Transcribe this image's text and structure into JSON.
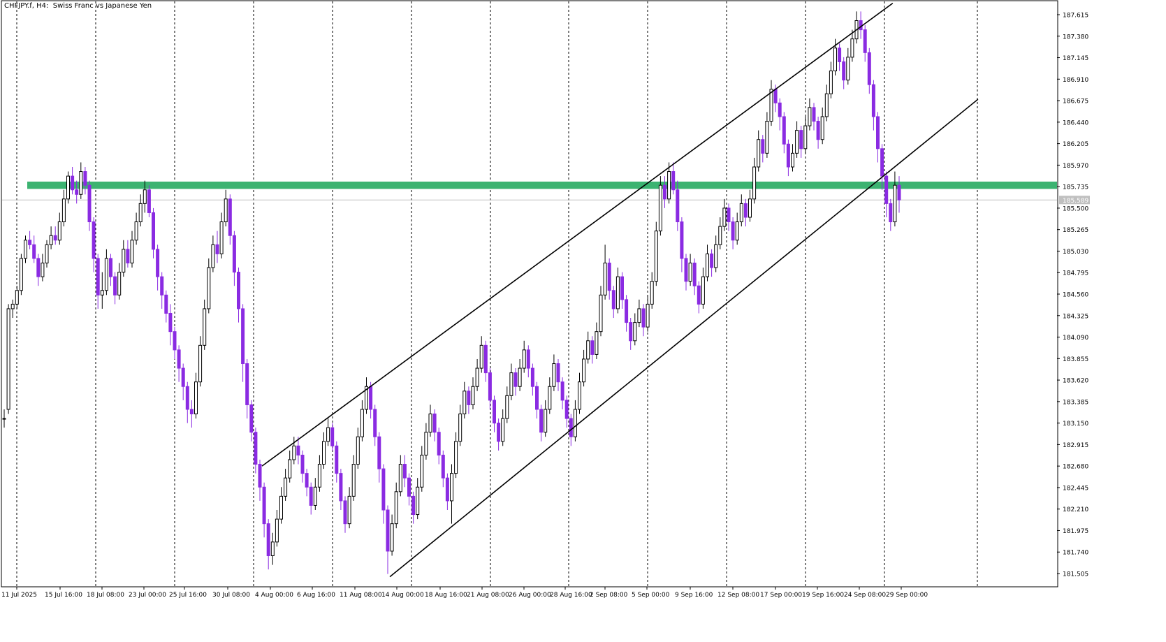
{
  "chart_data": {
    "type": "candlestick",
    "title": "CHFJPY.f, H4:  Swiss Franc vs Japanese Yen",
    "symbol": "CHFJPY.f",
    "timeframe": "H4",
    "instrument_name": "Swiss Franc vs Japanese Yen",
    "ylim": [
      181.36,
      187.76
    ],
    "y_ticks": [
      "187.615",
      "187.380",
      "187.145",
      "186.910",
      "186.675",
      "186.440",
      "186.205",
      "185.970",
      "185.735",
      "185.500",
      "185.265",
      "185.030",
      "184.795",
      "184.560",
      "184.325",
      "184.090",
      "183.855",
      "183.620",
      "183.385",
      "183.150",
      "182.915",
      "182.680",
      "182.445",
      "182.210",
      "181.975",
      "181.740",
      "181.505"
    ],
    "current_price": "185.589",
    "x_ticks": [
      "11 Jul 2025",
      "15 Jul 16:00",
      "18 Jul 08:00",
      "23 Jul 00:00",
      "25 Jul 16:00",
      "30 Jul 08:00",
      "4 Aug 00:00",
      "6 Aug 16:00",
      "11 Aug 08:00",
      "14 Aug 00:00",
      "18 Aug 16:00",
      "21 Aug 08:00",
      "26 Aug 00:00",
      "28 Aug 16:00",
      "2 Sep 08:00",
      "5 Sep 00:00",
      "9 Sep 16:00",
      "12 Sep 08:00",
      "17 Sep 00:00",
      "19 Sep 16:00",
      "24 Sep 08:00",
      "29 Sep 00:00"
    ],
    "grid": "vertical dashed",
    "colors": {
      "bull": "#000000",
      "bear": "#8a2be2",
      "zone": "#3cb371",
      "channel": "#000000",
      "price_line": "#c0c0c0",
      "price_label_bg": "#c0c0c0"
    },
    "resistance_zone": {
      "low": 185.71,
      "high": 185.79
    },
    "channel_lines": [
      {
        "from": {
          "bar": 60.5,
          "price": 182.68
        },
        "to": {
          "bar": 208.5,
          "price": 187.74
        }
      },
      {
        "from": {
          "bar": 90.5,
          "price": 181.47
        },
        "to": {
          "bar": 228.5,
          "price": 186.69
        }
      }
    ],
    "candles": [
      [
        183.2,
        183.2,
        183.1,
        183.3
      ],
      [
        183.3,
        184.4,
        183.25,
        184.45
      ],
      [
        184.4,
        184.45,
        184.3,
        184.5
      ],
      [
        184.45,
        184.6,
        184.4,
        184.65
      ],
      [
        184.6,
        184.95,
        184.55,
        185.0
      ],
      [
        184.95,
        185.15,
        184.9,
        185.2
      ],
      [
        185.15,
        185.1,
        185.05,
        185.25
      ],
      [
        185.1,
        184.95,
        184.9,
        185.2
      ],
      [
        184.95,
        184.75,
        184.65,
        185.0
      ],
      [
        184.75,
        184.9,
        184.7,
        185.0
      ],
      [
        184.9,
        185.1,
        184.85,
        185.15
      ],
      [
        185.1,
        185.2,
        185.05,
        185.3
      ],
      [
        185.2,
        185.15,
        185.1,
        185.3
      ],
      [
        185.15,
        185.35,
        185.1,
        185.45
      ],
      [
        185.35,
        185.6,
        185.3,
        185.7
      ],
      [
        185.6,
        185.85,
        185.55,
        185.9
      ],
      [
        185.85,
        185.7,
        185.65,
        185.95
      ],
      [
        185.7,
        185.65,
        185.55,
        185.8
      ],
      [
        185.65,
        185.9,
        185.6,
        186.0
      ],
      [
        185.9,
        185.75,
        185.65,
        185.95
      ],
      [
        185.75,
        185.35,
        185.25,
        185.8
      ],
      [
        185.35,
        184.95,
        184.8,
        185.4
      ],
      [
        184.95,
        184.55,
        184.4,
        185.0
      ],
      [
        184.55,
        184.6,
        184.4,
        184.8
      ],
      [
        184.6,
        184.95,
        184.55,
        185.05
      ],
      [
        184.95,
        184.75,
        184.65,
        185.0
      ],
      [
        184.75,
        184.55,
        184.45,
        184.8
      ],
      [
        184.55,
        184.8,
        184.5,
        184.9
      ],
      [
        184.8,
        185.05,
        184.75,
        185.15
      ],
      [
        185.05,
        184.9,
        184.85,
        185.15
      ],
      [
        184.9,
        185.15,
        184.85,
        185.25
      ],
      [
        185.15,
        185.35,
        185.1,
        185.45
      ],
      [
        185.35,
        185.55,
        185.3,
        185.65
      ],
      [
        185.55,
        185.7,
        185.45,
        185.8
      ],
      [
        185.7,
        185.45,
        185.4,
        185.75
      ],
      [
        185.45,
        185.05,
        184.95,
        185.5
      ],
      [
        185.05,
        184.75,
        184.6,
        185.1
      ],
      [
        184.75,
        184.55,
        184.4,
        184.8
      ],
      [
        184.55,
        184.35,
        184.25,
        184.6
      ],
      [
        184.35,
        184.15,
        184.0,
        184.45
      ],
      [
        184.15,
        183.95,
        183.85,
        184.2
      ],
      [
        183.95,
        183.75,
        183.6,
        184.0
      ],
      [
        183.75,
        183.55,
        183.4,
        183.8
      ],
      [
        183.55,
        183.3,
        183.15,
        183.6
      ],
      [
        183.3,
        183.25,
        183.1,
        183.4
      ],
      [
        183.25,
        183.6,
        183.2,
        183.7
      ],
      [
        183.6,
        184.0,
        183.55,
        184.1
      ],
      [
        184.0,
        184.4,
        183.95,
        184.5
      ],
      [
        184.4,
        184.85,
        184.35,
        184.95
      ],
      [
        184.85,
        185.1,
        184.8,
        185.2
      ],
      [
        185.1,
        185.0,
        184.9,
        185.25
      ],
      [
        185.0,
        185.35,
        184.95,
        185.45
      ],
      [
        185.35,
        185.6,
        185.3,
        185.7
      ],
      [
        185.6,
        185.2,
        185.1,
        185.65
      ],
      [
        185.2,
        184.8,
        184.65,
        185.25
      ],
      [
        184.8,
        184.4,
        184.25,
        184.85
      ],
      [
        184.4,
        183.8,
        183.6,
        184.45
      ],
      [
        183.8,
        183.35,
        183.2,
        183.85
      ],
      [
        183.35,
        183.05,
        182.95,
        183.4
      ],
      [
        183.05,
        182.7,
        182.6,
        183.1
      ],
      [
        182.7,
        182.45,
        182.3,
        182.75
      ],
      [
        182.45,
        182.05,
        181.9,
        182.5
      ],
      [
        182.05,
        181.7,
        181.55,
        182.1
      ],
      [
        181.7,
        181.85,
        181.6,
        181.95
      ],
      [
        181.85,
        182.1,
        181.8,
        182.2
      ],
      [
        182.1,
        182.35,
        182.05,
        182.45
      ],
      [
        182.35,
        182.55,
        182.3,
        182.65
      ],
      [
        182.55,
        182.75,
        182.5,
        182.85
      ],
      [
        182.75,
        182.9,
        182.7,
        183.0
      ],
      [
        182.9,
        182.8,
        182.7,
        183.0
      ],
      [
        182.8,
        182.6,
        182.5,
        182.85
      ],
      [
        182.6,
        182.45,
        182.35,
        182.65
      ],
      [
        182.45,
        182.25,
        182.15,
        182.5
      ],
      [
        182.25,
        182.45,
        182.2,
        182.55
      ],
      [
        182.45,
        182.7,
        182.4,
        182.8
      ],
      [
        182.7,
        182.95,
        182.65,
        183.05
      ],
      [
        182.95,
        183.1,
        182.9,
        183.2
      ],
      [
        183.1,
        182.9,
        182.85,
        183.15
      ],
      [
        182.9,
        182.6,
        182.5,
        182.95
      ],
      [
        182.6,
        182.3,
        182.2,
        182.65
      ],
      [
        182.3,
        182.05,
        181.95,
        182.35
      ],
      [
        182.05,
        182.35,
        182.0,
        182.45
      ],
      [
        182.35,
        182.7,
        182.3,
        182.8
      ],
      [
        182.7,
        183.0,
        182.65,
        183.1
      ],
      [
        183.0,
        183.3,
        182.95,
        183.4
      ],
      [
        183.3,
        183.55,
        183.25,
        183.65
      ],
      [
        183.55,
        183.3,
        183.2,
        183.6
      ],
      [
        183.3,
        183.0,
        182.9,
        183.35
      ],
      [
        183.0,
        182.65,
        182.5,
        183.05
      ],
      [
        182.65,
        182.2,
        182.05,
        182.7
      ],
      [
        182.2,
        181.75,
        181.5,
        182.25
      ],
      [
        181.75,
        182.05,
        181.7,
        182.15
      ],
      [
        182.05,
        182.4,
        182.0,
        182.5
      ],
      [
        182.4,
        182.7,
        182.35,
        182.8
      ],
      [
        182.7,
        182.55,
        182.45,
        182.8
      ],
      [
        182.55,
        182.35,
        182.25,
        182.6
      ],
      [
        182.35,
        182.15,
        182.05,
        182.4
      ],
      [
        182.15,
        182.45,
        182.1,
        182.55
      ],
      [
        182.45,
        182.8,
        182.4,
        182.9
      ],
      [
        182.8,
        183.05,
        182.75,
        183.15
      ],
      [
        183.05,
        183.25,
        183.0,
        183.35
      ],
      [
        183.25,
        183.05,
        182.95,
        183.3
      ],
      [
        183.05,
        182.8,
        182.7,
        183.1
      ],
      [
        182.8,
        182.55,
        182.45,
        182.85
      ],
      [
        182.55,
        182.3,
        182.2,
        182.6
      ],
      [
        182.3,
        182.6,
        182.05,
        182.7
      ],
      [
        182.6,
        182.95,
        182.55,
        183.05
      ],
      [
        182.95,
        183.25,
        182.9,
        183.35
      ],
      [
        183.25,
        183.5,
        183.2,
        183.6
      ],
      [
        183.5,
        183.35,
        183.25,
        183.55
      ],
      [
        183.35,
        183.55,
        183.3,
        183.65
      ],
      [
        183.55,
        183.75,
        183.5,
        183.85
      ],
      [
        183.75,
        184.0,
        183.7,
        184.1
      ],
      [
        184.0,
        183.7,
        183.6,
        184.05
      ],
      [
        183.7,
        183.4,
        183.3,
        183.75
      ],
      [
        183.4,
        183.15,
        183.05,
        183.45
      ],
      [
        183.15,
        182.95,
        182.85,
        183.2
      ],
      [
        182.95,
        183.2,
        182.9,
        183.3
      ],
      [
        183.2,
        183.45,
        183.15,
        183.55
      ],
      [
        183.45,
        183.7,
        183.4,
        183.8
      ],
      [
        183.7,
        183.55,
        183.45,
        183.75
      ],
      [
        183.55,
        183.75,
        183.5,
        183.85
      ],
      [
        183.75,
        183.95,
        183.7,
        184.05
      ],
      [
        183.95,
        183.75,
        183.65,
        184.0
      ],
      [
        183.75,
        183.55,
        183.45,
        183.8
      ],
      [
        183.55,
        183.3,
        183.2,
        183.6
      ],
      [
        183.3,
        183.05,
        182.95,
        183.35
      ],
      [
        183.05,
        183.3,
        183.0,
        183.4
      ],
      [
        183.3,
        183.55,
        183.25,
        183.65
      ],
      [
        183.55,
        183.8,
        183.5,
        183.9
      ],
      [
        183.8,
        183.6,
        183.5,
        183.85
      ],
      [
        183.6,
        183.4,
        183.3,
        183.65
      ],
      [
        183.4,
        183.2,
        183.1,
        183.45
      ],
      [
        183.2,
        183.0,
        182.9,
        183.25
      ],
      [
        183.0,
        183.3,
        182.95,
        183.4
      ],
      [
        183.3,
        183.6,
        183.25,
        183.7
      ],
      [
        183.6,
        183.85,
        183.55,
        183.95
      ],
      [
        183.85,
        184.05,
        183.8,
        184.15
      ],
      [
        184.05,
        183.9,
        183.8,
        184.1
      ],
      [
        183.9,
        184.15,
        183.85,
        184.25
      ],
      [
        184.15,
        184.55,
        184.1,
        184.65
      ],
      [
        184.55,
        184.9,
        184.5,
        185.1
      ],
      [
        184.9,
        184.6,
        184.5,
        184.95
      ],
      [
        184.6,
        184.4,
        184.3,
        184.65
      ],
      [
        184.4,
        184.75,
        184.35,
        184.85
      ],
      [
        184.75,
        184.5,
        184.4,
        184.8
      ],
      [
        184.5,
        184.25,
        184.15,
        184.55
      ],
      [
        184.25,
        184.05,
        183.95,
        184.3
      ],
      [
        184.05,
        184.25,
        184.0,
        184.35
      ],
      [
        184.25,
        184.4,
        184.2,
        184.5
      ],
      [
        184.4,
        184.2,
        184.1,
        184.45
      ],
      [
        184.2,
        184.45,
        184.15,
        184.55
      ],
      [
        184.45,
        184.7,
        184.4,
        184.8
      ],
      [
        184.7,
        185.25,
        184.65,
        185.35
      ],
      [
        185.25,
        185.75,
        185.2,
        185.85
      ],
      [
        185.75,
        185.6,
        185.5,
        185.85
      ],
      [
        185.6,
        185.9,
        185.55,
        186.0
      ],
      [
        185.9,
        185.7,
        185.65,
        186.0
      ],
      [
        185.7,
        185.35,
        185.25,
        185.8
      ],
      [
        185.35,
        184.95,
        184.8,
        185.4
      ],
      [
        184.95,
        184.7,
        184.6,
        185.0
      ],
      [
        184.7,
        184.9,
        184.65,
        185.0
      ],
      [
        184.9,
        184.65,
        184.55,
        184.95
      ],
      [
        184.65,
        184.45,
        184.35,
        184.7
      ],
      [
        184.45,
        184.75,
        184.4,
        184.85
      ],
      [
        184.75,
        185.0,
        184.7,
        185.1
      ],
      [
        185.0,
        184.85,
        184.75,
        185.05
      ],
      [
        184.85,
        185.1,
        184.8,
        185.2
      ],
      [
        185.1,
        185.3,
        185.05,
        185.4
      ],
      [
        185.3,
        185.5,
        185.25,
        185.6
      ],
      [
        185.5,
        185.35,
        185.25,
        185.55
      ],
      [
        185.35,
        185.15,
        185.05,
        185.4
      ],
      [
        185.15,
        185.35,
        185.1,
        185.45
      ],
      [
        185.35,
        185.55,
        185.3,
        185.65
      ],
      [
        185.55,
        185.4,
        185.3,
        185.6
      ],
      [
        185.4,
        185.6,
        185.35,
        185.7
      ],
      [
        185.6,
        185.95,
        185.55,
        186.05
      ],
      [
        185.95,
        186.25,
        185.9,
        186.35
      ],
      [
        186.25,
        186.1,
        186.0,
        186.3
      ],
      [
        186.1,
        186.45,
        186.05,
        186.55
      ],
      [
        186.45,
        186.8,
        186.4,
        186.9
      ],
      [
        186.8,
        186.65,
        186.55,
        186.85
      ],
      [
        186.65,
        186.5,
        186.35,
        186.7
      ],
      [
        186.5,
        186.2,
        186.1,
        186.55
      ],
      [
        186.2,
        185.95,
        185.85,
        186.25
      ],
      [
        185.95,
        186.1,
        185.9,
        186.2
      ],
      [
        186.1,
        186.35,
        186.05,
        186.45
      ],
      [
        186.35,
        186.15,
        186.05,
        186.4
      ],
      [
        186.15,
        186.4,
        186.1,
        186.5
      ],
      [
        186.4,
        186.6,
        186.35,
        186.7
      ],
      [
        186.6,
        186.45,
        186.35,
        186.65
      ],
      [
        186.45,
        186.25,
        186.15,
        186.5
      ],
      [
        186.25,
        186.5,
        186.2,
        186.6
      ],
      [
        186.5,
        186.75,
        186.45,
        186.85
      ],
      [
        186.75,
        187.0,
        186.7,
        187.1
      ],
      [
        187.0,
        187.25,
        186.95,
        187.35
      ],
      [
        187.25,
        187.1,
        187.0,
        187.3
      ],
      [
        187.1,
        186.9,
        186.8,
        187.15
      ],
      [
        186.9,
        187.15,
        186.85,
        187.25
      ],
      [
        187.15,
        187.35,
        187.1,
        187.45
      ],
      [
        187.35,
        187.55,
        187.3,
        187.65
      ],
      [
        187.55,
        187.45,
        187.35,
        187.65
      ],
      [
        187.45,
        187.2,
        187.1,
        187.5
      ],
      [
        187.2,
        186.85,
        186.75,
        187.25
      ],
      [
        186.85,
        186.5,
        186.35,
        186.9
      ],
      [
        186.5,
        186.15,
        186.0,
        186.55
      ],
      [
        186.15,
        185.85,
        185.7,
        186.2
      ],
      [
        185.85,
        185.55,
        185.4,
        185.9
      ],
      [
        185.55,
        185.35,
        185.25,
        185.6
      ],
      [
        185.35,
        185.75,
        185.3,
        185.9
      ],
      [
        185.75,
        185.59,
        185.45,
        185.85
      ]
    ]
  }
}
